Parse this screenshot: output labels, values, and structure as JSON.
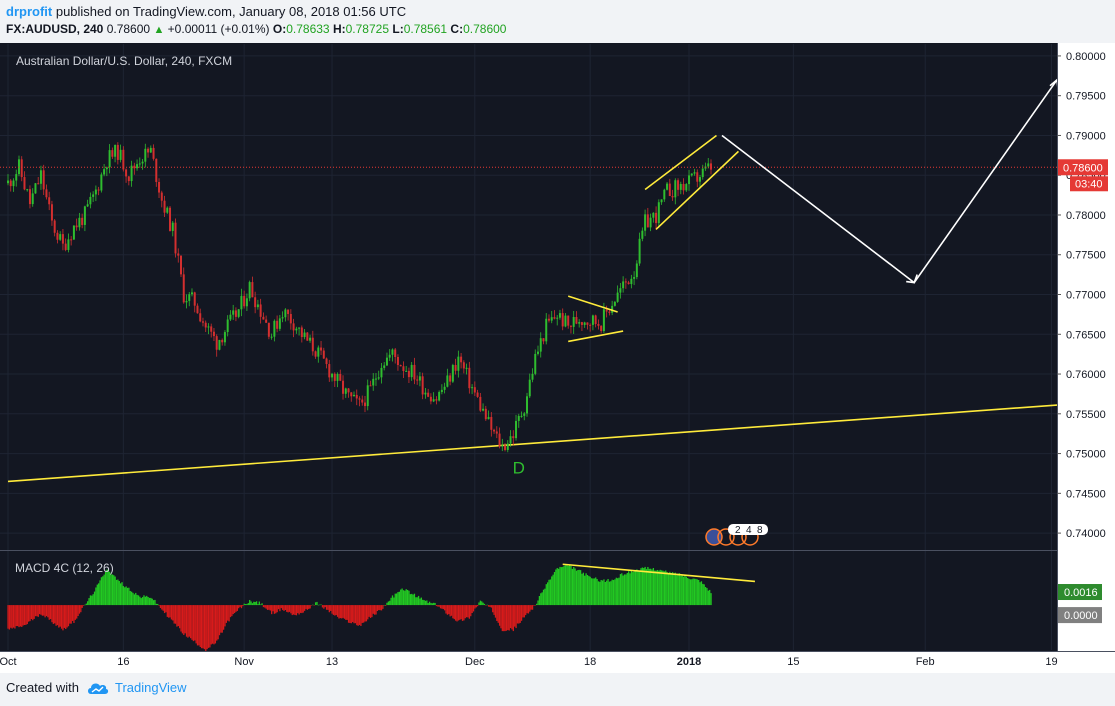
{
  "header": {
    "user": "drprofit",
    "published_text": "published on TradingView.com, January 08, 2018 01:56 UTC",
    "symbol": "FX:AUDUSD, 240",
    "last": "0.78600",
    "change": "+0.00011 (+0.01%)",
    "o_label": "O:",
    "o_value": "0.78633",
    "h_label": "H:",
    "h_value": "0.78725",
    "l_label": "L:",
    "l_value": "0.78561",
    "c_label": "C:",
    "c_value": "0.78600"
  },
  "footer": {
    "created_with": "Created with",
    "brand": "TradingView"
  },
  "colors": {
    "background": "#131722",
    "up": "#26a69a",
    "candle_up": "#2fbd2f",
    "candle_down": "#d32f2f",
    "trendline": "#ffeb3b",
    "projection": "#ffffff",
    "price_line": "#e53935",
    "macd_up": "#22c922",
    "macd_down": "#d81b1b"
  },
  "chart_data": {
    "type": "candlestick",
    "title": "Australian Dollar/U.S. Dollar, 240, FXCM",
    "y_ticks": [
      "0.80000",
      "0.79500",
      "0.79000",
      "0.78500",
      "0.78000",
      "0.77500",
      "0.77000",
      "0.76500",
      "0.76000",
      "0.75500",
      "0.75000",
      "0.74500",
      "0.74000"
    ],
    "ylim": [
      0.738,
      0.8015
    ],
    "x_ticks": [
      "Oct",
      "16",
      "Nov",
      "13",
      "Dec",
      "18",
      "2018",
      "15",
      "Feb",
      "19"
    ],
    "current_price": "0.78600",
    "countdown": "03:40",
    "pattern_label": "D",
    "event_labels": [
      "2",
      "4",
      "8"
    ],
    "close_path": [
      [
        0,
        0.784
      ],
      [
        2,
        0.786
      ],
      [
        4,
        0.7815
      ],
      [
        6,
        0.785
      ],
      [
        8,
        0.779
      ],
      [
        10,
        0.776
      ],
      [
        12,
        0.7785
      ],
      [
        14,
        0.78
      ],
      [
        16,
        0.783
      ],
      [
        18,
        0.787
      ],
      [
        20,
        0.788
      ],
      [
        22,
        0.785
      ],
      [
        24,
        0.7872
      ],
      [
        26,
        0.788
      ],
      [
        28,
        0.782
      ],
      [
        30,
        0.778
      ],
      [
        32,
        0.77
      ],
      [
        34,
        0.769
      ],
      [
        36,
        0.766
      ],
      [
        38,
        0.764
      ],
      [
        40,
        0.766
      ],
      [
        42,
        0.768
      ],
      [
        44,
        0.771
      ],
      [
        46,
        0.768
      ],
      [
        48,
        0.765
      ],
      [
        50,
        0.768
      ],
      [
        52,
        0.7665
      ],
      [
        54,
        0.7645
      ],
      [
        56,
        0.763
      ],
      [
        58,
        0.761
      ],
      [
        60,
        0.759
      ],
      [
        62,
        0.757
      ],
      [
        64,
        0.756
      ],
      [
        66,
        0.758
      ],
      [
        68,
        0.7615
      ],
      [
        70,
        0.7625
      ],
      [
        72,
        0.761
      ],
      [
        74,
        0.76
      ],
      [
        76,
        0.758
      ],
      [
        78,
        0.757
      ],
      [
        80,
        0.759
      ],
      [
        82,
        0.762
      ],
      [
        84,
        0.759
      ],
      [
        86,
        0.756
      ],
      [
        88,
        0.753
      ],
      [
        90,
        0.7508
      ],
      [
        92,
        0.7525
      ],
      [
        94,
        0.756
      ],
      [
        96,
        0.762
      ],
      [
        98,
        0.766
      ],
      [
        100,
        0.7675
      ],
      [
        102,
        0.766
      ],
      [
        104,
        0.767
      ],
      [
        106,
        0.7668
      ],
      [
        108,
        0.7665
      ],
      [
        110,
        0.769
      ],
      [
        112,
        0.771
      ],
      [
        114,
        0.773
      ],
      [
        116,
        0.779
      ],
      [
        118,
        0.78
      ],
      [
        120,
        0.783
      ],
      [
        122,
        0.7835
      ],
      [
        124,
        0.784
      ],
      [
        126,
        0.785
      ],
      [
        128,
        0.786
      ]
    ],
    "annotations": {
      "support_line": [
        [
          0,
          0.7465
        ],
        [
          191,
          0.7561
        ]
      ],
      "d_point": [
        93,
        0.75
      ],
      "flag_upper": [
        [
          102,
          0.7698
        ],
        [
          111,
          0.7678
        ]
      ],
      "flag_lower": [
        [
          102,
          0.7641
        ],
        [
          112,
          0.7654
        ]
      ],
      "channel_upper": [
        [
          116,
          0.7832
        ],
        [
          129,
          0.79
        ]
      ],
      "channel_lower": [
        [
          118,
          0.7782
        ],
        [
          133,
          0.788
        ]
      ],
      "projection": [
        [
          130,
          0.79
        ],
        [
          165,
          0.7715
        ],
        [
          191,
          0.797
        ]
      ],
      "macd_divergence": [
        [
          101,
          0.005
        ],
        [
          136,
          0.0029
        ]
      ]
    },
    "macd": {
      "label": "MACD 4C (12, 26)",
      "value_label": "0.0016",
      "zero_label": "0.0000",
      "ylim": [
        -0.0055,
        0.0065
      ],
      "histogram_path": [
        [
          0,
          -0.003
        ],
        [
          3,
          -0.0025
        ],
        [
          6,
          -0.001
        ],
        [
          8,
          -0.002
        ],
        [
          10,
          -0.003
        ],
        [
          12,
          -0.002
        ],
        [
          14,
          0.0
        ],
        [
          16,
          0.002
        ],
        [
          18,
          0.0045
        ],
        [
          20,
          0.003
        ],
        [
          22,
          0.002
        ],
        [
          24,
          0.001
        ],
        [
          26,
          0.001
        ],
        [
          28,
          -0.0005
        ],
        [
          30,
          -0.002
        ],
        [
          32,
          -0.0035
        ],
        [
          34,
          -0.0045
        ],
        [
          36,
          -0.0055
        ],
        [
          38,
          -0.0045
        ],
        [
          40,
          -0.002
        ],
        [
          42,
          -0.0005
        ],
        [
          44,
          0.0005
        ],
        [
          46,
          0.0002
        ],
        [
          48,
          -0.001
        ],
        [
          50,
          -0.0005
        ],
        [
          52,
          -0.0012
        ],
        [
          54,
          -0.0008
        ],
        [
          56,
          0.0003
        ],
        [
          58,
          -0.0005
        ],
        [
          60,
          -0.0015
        ],
        [
          62,
          -0.002
        ],
        [
          64,
          -0.0025
        ],
        [
          66,
          -0.0015
        ],
        [
          68,
          -0.0005
        ],
        [
          70,
          0.001
        ],
        [
          72,
          0.002
        ],
        [
          74,
          0.0012
        ],
        [
          76,
          0.0005
        ],
        [
          78,
          0.0
        ],
        [
          80,
          -0.001
        ],
        [
          82,
          -0.002
        ],
        [
          84,
          -0.0015
        ],
        [
          86,
          0.0005
        ],
        [
          88,
          -0.0005
        ],
        [
          90,
          -0.003
        ],
        [
          92,
          -0.003
        ],
        [
          94,
          -0.0015
        ],
        [
          96,
          0.0
        ],
        [
          98,
          0.0025
        ],
        [
          100,
          0.0045
        ],
        [
          102,
          0.0048
        ],
        [
          104,
          0.0042
        ],
        [
          106,
          0.0034
        ],
        [
          108,
          0.003
        ],
        [
          110,
          0.003
        ],
        [
          112,
          0.0038
        ],
        [
          114,
          0.0042
        ],
        [
          116,
          0.0045
        ],
        [
          118,
          0.0044
        ],
        [
          120,
          0.004
        ],
        [
          122,
          0.0038
        ],
        [
          124,
          0.0034
        ],
        [
          126,
          0.003
        ],
        [
          128,
          0.0016
        ]
      ]
    }
  }
}
